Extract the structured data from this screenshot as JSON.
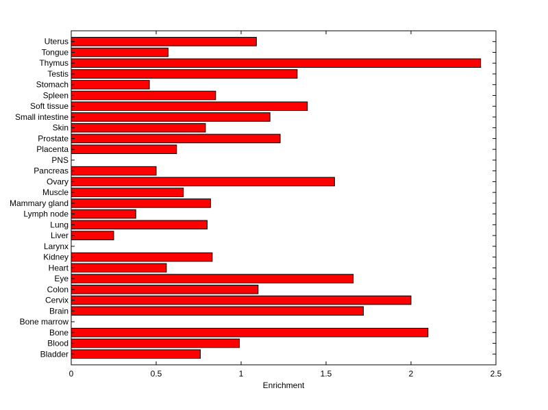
{
  "chart_data": {
    "type": "bar",
    "orientation": "horizontal",
    "title": "",
    "xlabel": "Enrichment",
    "ylabel": "",
    "xlim": [
      0,
      2.5
    ],
    "xticks": [
      "0",
      "0.5",
      "1",
      "1.5",
      "2",
      "2.5"
    ],
    "xtick_values": [
      0,
      0.5,
      1,
      1.5,
      2,
      2.5
    ],
    "bar_color": "#ff0000",
    "categories": [
      "Bladder",
      "Blood",
      "Bone",
      "Bone marrow",
      "Brain",
      "Cervix",
      "Colon",
      "Eye",
      "Heart",
      "Kidney",
      "Larynx",
      "Liver",
      "Lung",
      "Lymph node",
      "Mammary gland",
      "Muscle",
      "Ovary",
      "Pancreas",
      "PNS",
      "Placenta",
      "Prostate",
      "Skin",
      "Small intestine",
      "Soft tissue",
      "Spleen",
      "Stomach",
      "Testis",
      "Thymus",
      "Tongue",
      "Uterus"
    ],
    "values": [
      0.76,
      0.99,
      2.1,
      0,
      1.72,
      2.0,
      1.1,
      1.66,
      0.56,
      0.83,
      0,
      0.25,
      0.8,
      0.38,
      0.82,
      0.66,
      1.55,
      0.5,
      0,
      0.62,
      1.23,
      0.79,
      1.17,
      1.39,
      0.85,
      0.46,
      1.33,
      2.41,
      0.57,
      1.09
    ],
    "grid": false
  }
}
